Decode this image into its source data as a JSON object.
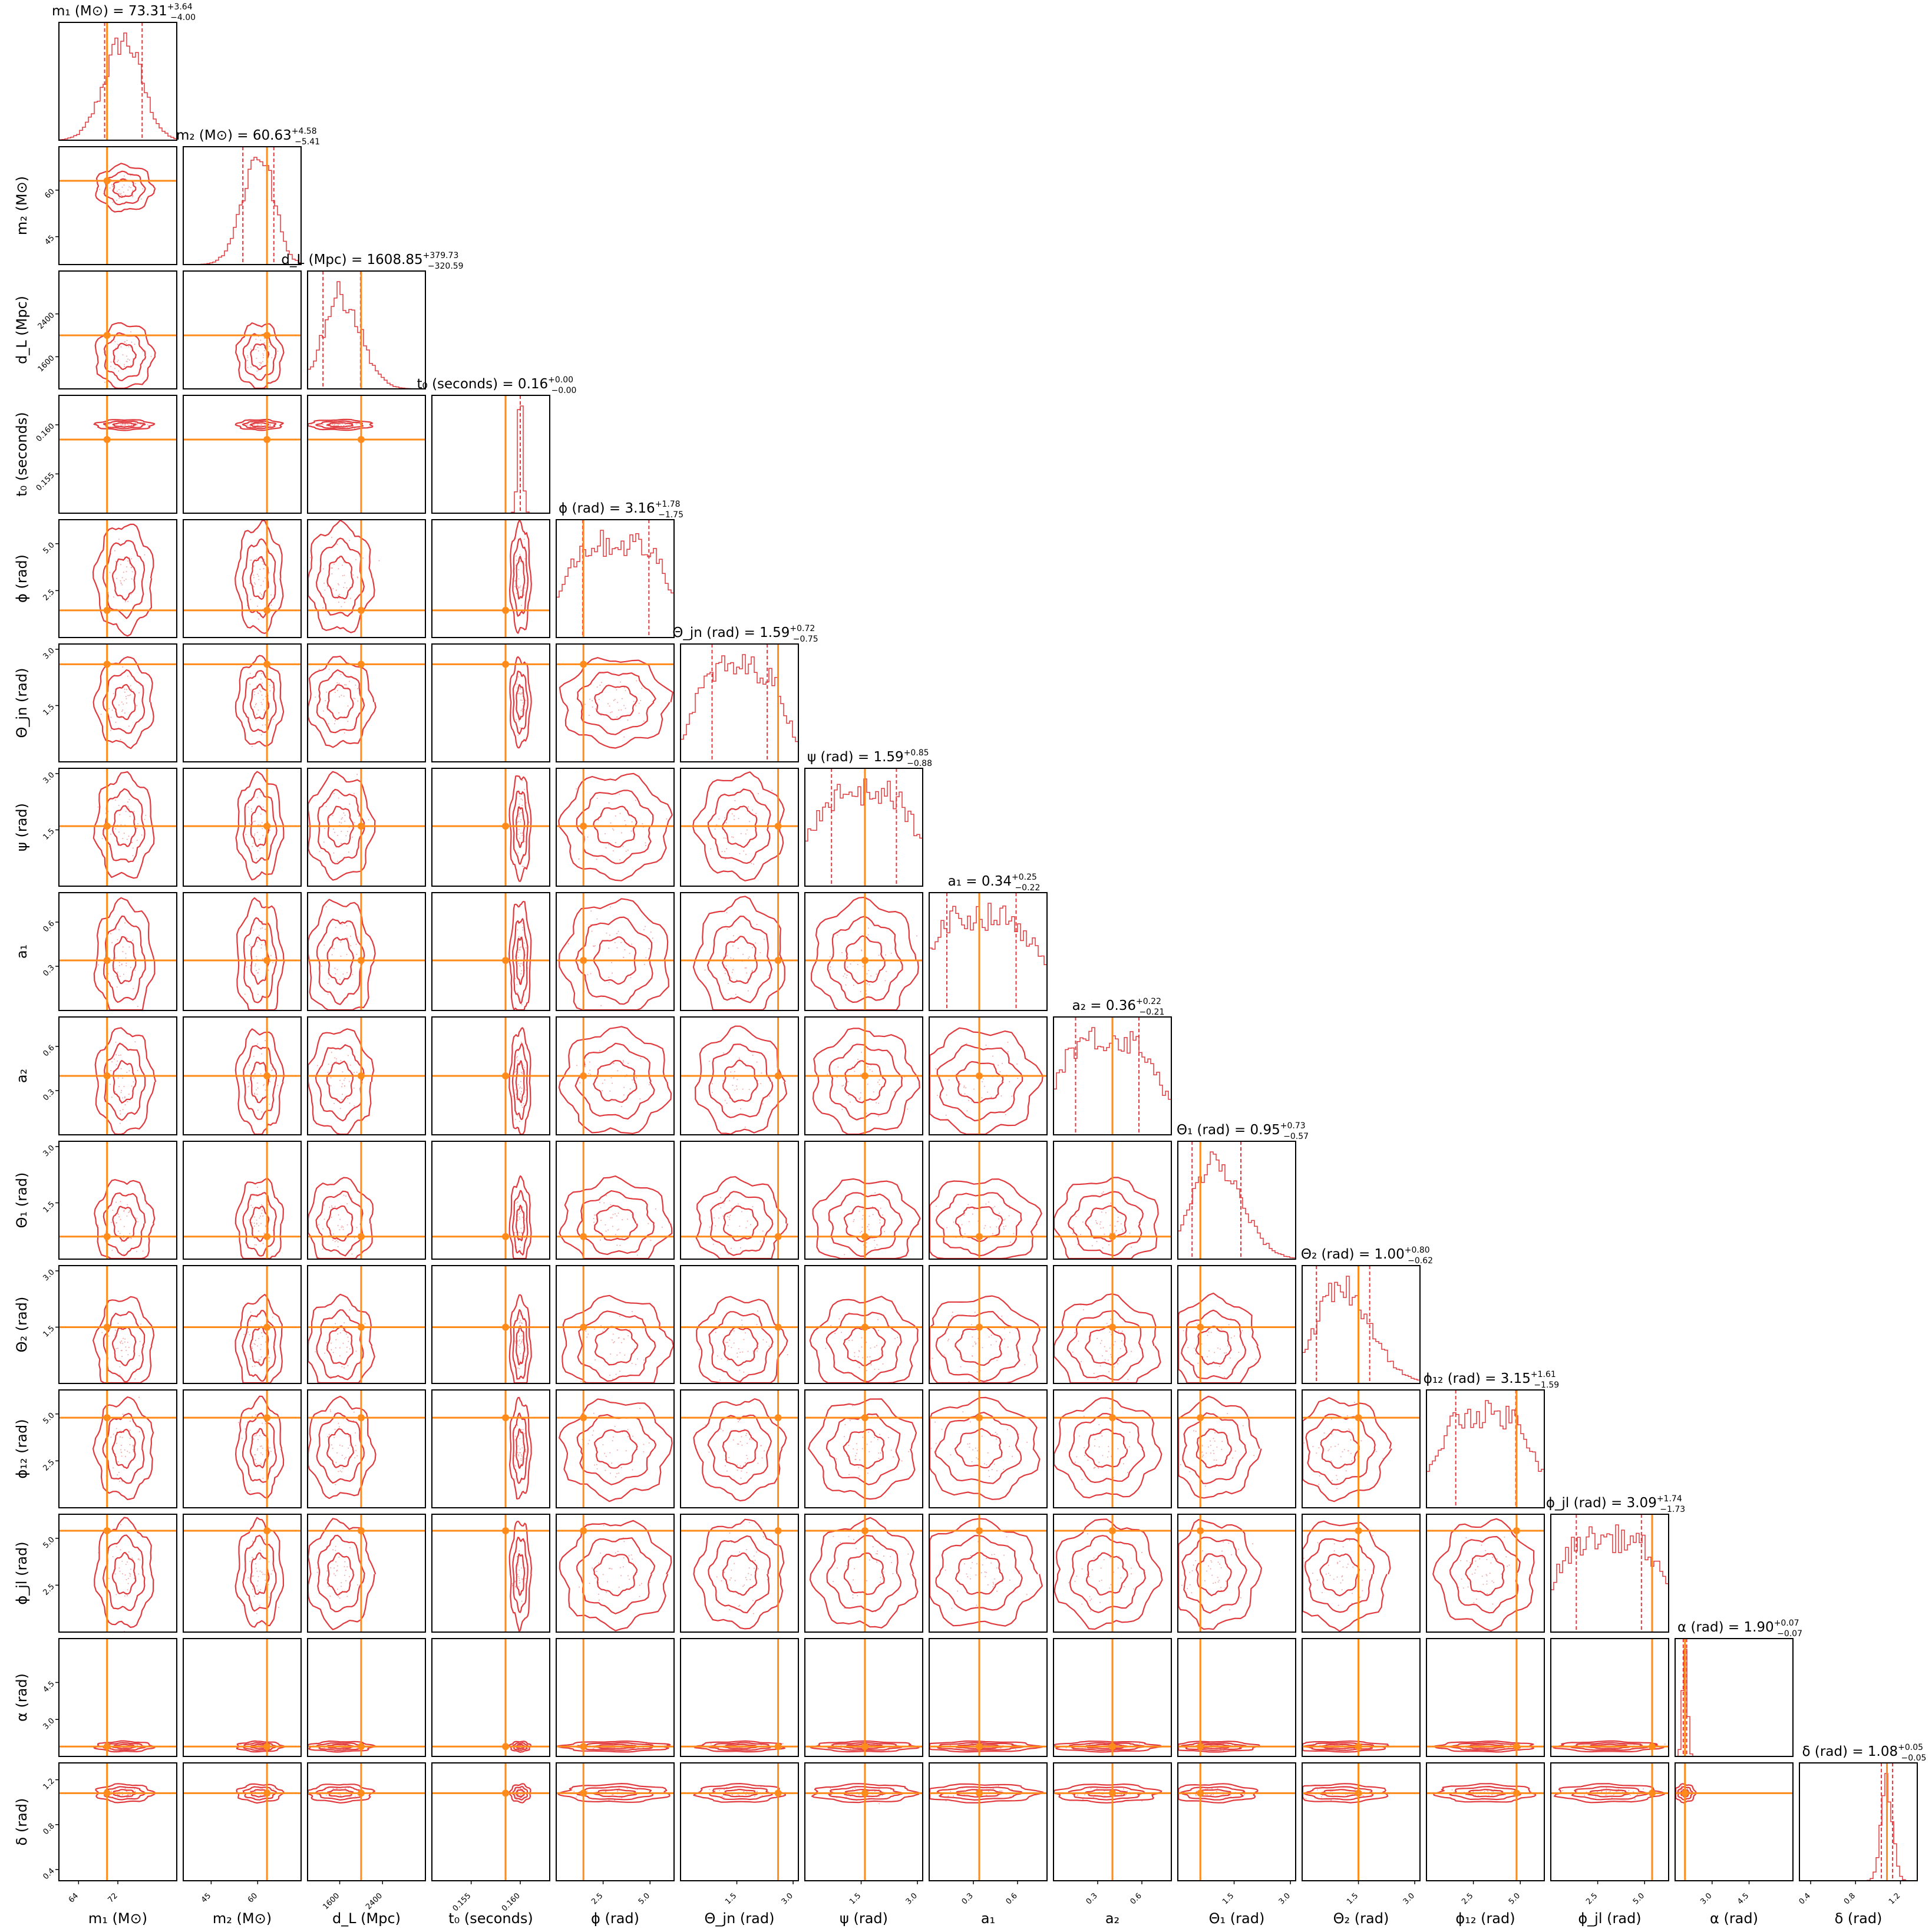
{
  "chart_data": {
    "type": "corner",
    "grid": false,
    "colors": {
      "posterior": "#e03a3e",
      "truth": "#ff8c1a",
      "frame": "#000000",
      "scatter": "#f3a5a5"
    },
    "parameters": [
      {
        "key": "m1",
        "axis_label": "m₁ (M⊙)",
        "title": "m₁ (M⊙) = 73.31",
        "median": 73.31,
        "plus": "+3.64",
        "minus": "−4.00",
        "range": [
          60.0,
          84.0
        ],
        "ticks": [
          64,
          72
        ],
        "tick_labels": [
          "64",
          "72"
        ],
        "truth": 69.8
      },
      {
        "key": "m2",
        "axis_label": "m₂ (M⊙)",
        "title": "m₂ (M⊙) = 60.63",
        "median": 60.63,
        "plus": "+4.58",
        "minus": "−5.41",
        "range": [
          36.0,
          74.0
        ],
        "ticks": [
          45,
          60
        ],
        "tick_labels": [
          "45",
          "60"
        ],
        "truth": 63.0
      },
      {
        "key": "dL",
        "axis_label": "d_L (Mpc)",
        "title": "d_L (Mpc) = 1608.85",
        "median": 1608.85,
        "plus": "+379.73",
        "minus": "−320.59",
        "range": [
          1000.0,
          3200.0
        ],
        "ticks": [
          1600,
          2400
        ],
        "tick_labels": [
          "1600",
          "2400"
        ],
        "truth": 2000.0
      },
      {
        "key": "t0",
        "axis_label": "t₀ (seconds)",
        "title": "t₀ (seconds) = 0.16",
        "median": 0.16,
        "plus": "+0.00",
        "minus": "−0.00",
        "range": [
          0.151,
          0.163
        ],
        "ticks": [
          0.155,
          0.16
        ],
        "tick_labels": [
          "0.155",
          "0.160"
        ],
        "truth": 0.1585
      },
      {
        "key": "phi",
        "axis_label": "ϕ (rad)",
        "title": "ϕ (rad) = 3.16",
        "median": 3.16,
        "plus": "+1.78",
        "minus": "−1.75",
        "range": [
          0.0,
          6.28
        ],
        "ticks": [
          2.5,
          5.0
        ],
        "tick_labels": [
          "2.5",
          "5.0"
        ],
        "truth": 1.45
      },
      {
        "key": "thetajn",
        "axis_label": "Θ_jn (rad)",
        "title": "Θ_jn (rad) = 1.59",
        "median": 1.59,
        "plus": "+0.72",
        "minus": "−0.75",
        "range": [
          0.0,
          3.14
        ],
        "ticks": [
          1.5,
          3.0
        ],
        "tick_labels": [
          "1.5",
          "3.0"
        ],
        "truth": 2.6
      },
      {
        "key": "psi",
        "axis_label": "ψ (rad)",
        "title": "ψ (rad) = 1.59",
        "median": 1.59,
        "plus": "+0.85",
        "minus": "−0.88",
        "range": [
          0.0,
          3.14
        ],
        "ticks": [
          1.5,
          3.0
        ],
        "tick_labels": [
          "1.5",
          "3.0"
        ],
        "truth": 1.6
      },
      {
        "key": "a1",
        "axis_label": "a₁",
        "title": "a₁ = 0.34",
        "median": 0.34,
        "plus": "+0.25",
        "minus": "−0.22",
        "range": [
          0.0,
          0.8
        ],
        "ticks": [
          0.3,
          0.6
        ],
        "tick_labels": [
          "0.3",
          "0.6"
        ],
        "truth": 0.34
      },
      {
        "key": "a2",
        "axis_label": "a₂",
        "title": "a₂ = 0.36",
        "median": 0.36,
        "plus": "+0.22",
        "minus": "−0.21",
        "range": [
          0.0,
          0.8
        ],
        "ticks": [
          0.3,
          0.6
        ],
        "tick_labels": [
          "0.3",
          "0.6"
        ],
        "truth": 0.4
      },
      {
        "key": "theta1",
        "axis_label": "Θ₁ (rad)",
        "title": "Θ₁ (rad) = 0.95",
        "median": 0.95,
        "plus": "+0.73",
        "minus": "−0.57",
        "range": [
          0.0,
          3.14
        ],
        "ticks": [
          1.5,
          3.0
        ],
        "tick_labels": [
          "1.5",
          "3.0"
        ],
        "truth": 0.6
      },
      {
        "key": "theta2",
        "axis_label": "Θ₂ (rad)",
        "title": "Θ₂ (rad) = 1.00",
        "median": 1.0,
        "plus": "+0.80",
        "minus": "−0.62",
        "range": [
          0.0,
          3.14
        ],
        "ticks": [
          1.5,
          3.0
        ],
        "tick_labels": [
          "1.5",
          "3.0"
        ],
        "truth": 1.5
      },
      {
        "key": "phi12",
        "axis_label": "ϕ₁₂ (rad)",
        "title": "ϕ₁₂ (rad) = 3.15",
        "median": 3.15,
        "plus": "+1.61",
        "minus": "−1.59",
        "range": [
          0.0,
          6.28
        ],
        "ticks": [
          2.5,
          5.0
        ],
        "tick_labels": [
          "2.5",
          "5.0"
        ],
        "truth": 4.8
      },
      {
        "key": "phijl",
        "axis_label": "ϕ_jl (rad)",
        "title": "ϕ_jl (rad) = 3.09",
        "median": 3.09,
        "plus": "+1.74",
        "minus": "−1.73",
        "range": [
          0.0,
          6.28
        ],
        "ticks": [
          2.5,
          5.0
        ],
        "tick_labels": [
          "2.5",
          "5.0"
        ],
        "truth": 5.4
      },
      {
        "key": "alpha",
        "axis_label": "α (rad)",
        "title": "α (rad) = 1.90",
        "median": 1.9,
        "plus": "+0.07",
        "minus": "−0.07",
        "range": [
          1.5,
          6.28
        ],
        "ticks": [
          3.0,
          4.5
        ],
        "tick_labels": [
          "3.0",
          "4.5"
        ],
        "truth": 1.9
      },
      {
        "key": "delta",
        "axis_label": "δ (rad)",
        "title": "δ (rad) = 1.08",
        "median": 1.08,
        "plus": "+0.05",
        "minus": "−0.05",
        "range": [
          0.3,
          1.35
        ],
        "ticks": [
          0.4,
          0.8,
          1.2
        ],
        "tick_labels": [
          "0.4",
          "0.8",
          "1.2"
        ],
        "truth": 1.08
      }
    ]
  }
}
